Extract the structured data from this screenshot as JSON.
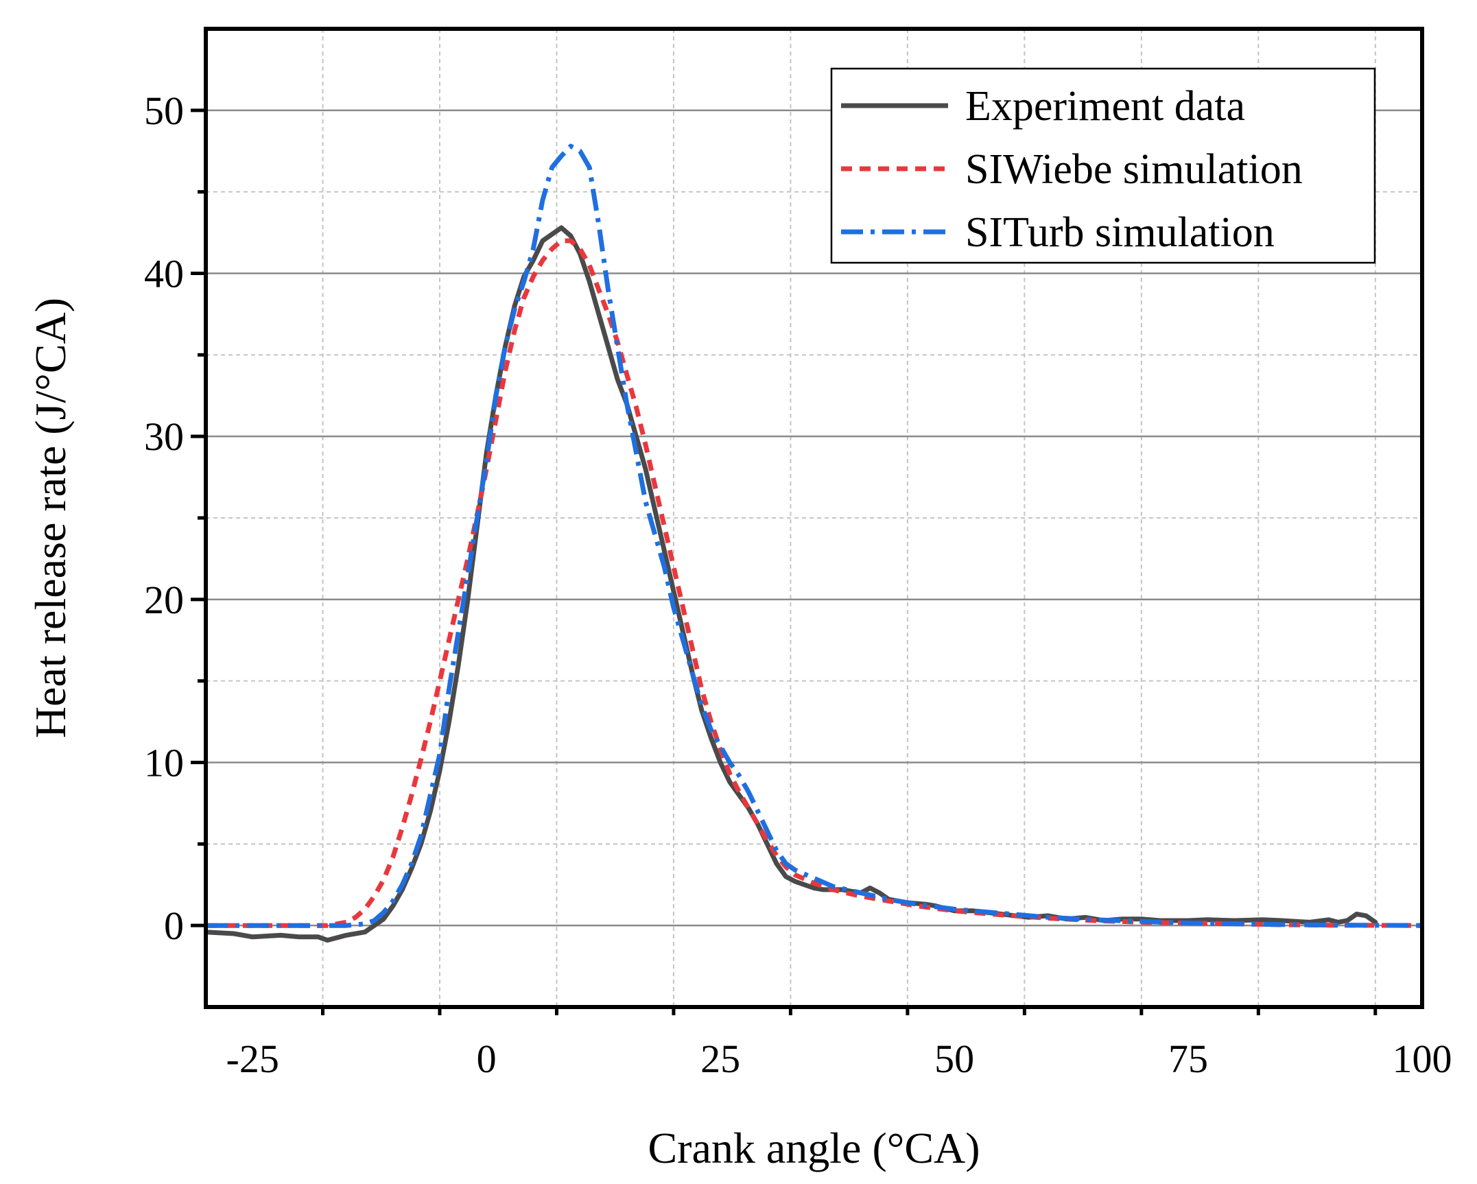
{
  "chart_data": {
    "type": "line",
    "title": "",
    "xlabel": "Crank angle (°CA)",
    "ylabel": "Heat release rate (J/°CA)",
    "xlim": [
      -30,
      100
    ],
    "ylim": [
      -5,
      55
    ],
    "xticks": [
      -25,
      0,
      25,
      50,
      75,
      100
    ],
    "yticks": [
      0,
      10,
      20,
      30,
      40,
      50
    ],
    "xtick_labels": [
      "-25",
      "0",
      "25",
      "50",
      "75",
      "100"
    ],
    "ytick_labels": [
      "0",
      "10",
      "20",
      "30",
      "40",
      "50"
    ],
    "grid": true,
    "legend_position": "top-right",
    "series": [
      {
        "name": "Experiment data",
        "color": "#4a4a4a",
        "style": "solid",
        "points": [
          [
            -30,
            -0.4
          ],
          [
            -27,
            -0.5
          ],
          [
            -25,
            -0.7
          ],
          [
            -22,
            -0.6
          ],
          [
            -20,
            -0.7
          ],
          [
            -18,
            -0.7
          ],
          [
            -17,
            -0.9
          ],
          [
            -15,
            -0.6
          ],
          [
            -13,
            -0.4
          ],
          [
            -12,
            0
          ],
          [
            -11,
            0.4
          ],
          [
            -10,
            1.2
          ],
          [
            -9,
            2.2
          ],
          [
            -8,
            3.5
          ],
          [
            -7,
            5
          ],
          [
            -6,
            7
          ],
          [
            -5,
            9.5
          ],
          [
            -4,
            12.5
          ],
          [
            -3,
            16
          ],
          [
            -2,
            20
          ],
          [
            -1,
            24.5
          ],
          [
            0,
            29
          ],
          [
            1,
            32.5
          ],
          [
            2,
            35.5
          ],
          [
            3,
            38
          ],
          [
            4,
            39.8
          ],
          [
            5,
            40.8
          ],
          [
            6,
            42
          ],
          [
            7,
            42.4
          ],
          [
            8,
            42.8
          ],
          [
            9,
            42.3
          ],
          [
            10,
            41.2
          ],
          [
            11,
            39.5
          ],
          [
            12,
            37.5
          ],
          [
            13,
            35.5
          ],
          [
            14,
            33.5
          ],
          [
            15,
            32
          ],
          [
            16,
            30
          ],
          [
            17,
            28
          ],
          [
            18,
            25.5
          ],
          [
            19,
            23
          ],
          [
            20,
            20.5
          ],
          [
            21,
            18
          ],
          [
            22,
            15.5
          ],
          [
            23,
            13.2
          ],
          [
            24,
            11.5
          ],
          [
            25,
            10
          ],
          [
            26,
            8.8
          ],
          [
            27,
            8
          ],
          [
            28,
            7.2
          ],
          [
            29,
            6.2
          ],
          [
            30,
            5
          ],
          [
            31,
            3.8
          ],
          [
            32,
            3
          ],
          [
            33,
            2.7
          ],
          [
            34,
            2.5
          ],
          [
            35,
            2.3
          ],
          [
            36,
            2.2
          ],
          [
            37,
            2.2
          ],
          [
            38,
            2.2
          ],
          [
            39,
            2.1
          ],
          [
            40,
            2.0
          ],
          [
            41,
            2.3
          ],
          [
            42,
            2.0
          ],
          [
            43,
            1.6
          ],
          [
            45,
            1.4
          ],
          [
            47,
            1.3
          ],
          [
            48,
            1.2
          ],
          [
            50,
            0.9
          ],
          [
            52,
            0.9
          ],
          [
            55,
            0.7
          ],
          [
            58,
            0.5
          ],
          [
            60,
            0.6
          ],
          [
            62,
            0.4
          ],
          [
            64,
            0.5
          ],
          [
            66,
            0.3
          ],
          [
            68,
            0.4
          ],
          [
            70,
            0.4
          ],
          [
            72,
            0.3
          ],
          [
            75,
            0.3
          ],
          [
            77,
            0.35
          ],
          [
            80,
            0.3
          ],
          [
            83,
            0.35
          ],
          [
            85,
            0.3
          ],
          [
            88,
            0.2
          ],
          [
            90,
            0.35
          ],
          [
            91,
            0.2
          ],
          [
            92,
            0.3
          ],
          [
            93,
            0.7
          ],
          [
            94,
            0.6
          ],
          [
            95,
            0.2
          ]
        ]
      },
      {
        "name": "SIWiebe simulation",
        "color": "#e8383d",
        "style": "dash",
        "points": [
          [
            -30,
            0
          ],
          [
            -25,
            0
          ],
          [
            -20,
            0
          ],
          [
            -17,
            0
          ],
          [
            -15,
            0.2
          ],
          [
            -14,
            0.5
          ],
          [
            -13,
            1
          ],
          [
            -12,
            1.8
          ],
          [
            -11,
            2.8
          ],
          [
            -10,
            4.2
          ],
          [
            -9,
            6
          ],
          [
            -8,
            8
          ],
          [
            -7,
            10.2
          ],
          [
            -6,
            12.5
          ],
          [
            -5,
            15
          ],
          [
            -4,
            17.5
          ],
          [
            -3,
            20
          ],
          [
            -2,
            22.5
          ],
          [
            -1,
            25.2
          ],
          [
            0,
            28
          ],
          [
            1,
            31
          ],
          [
            2,
            34
          ],
          [
            3,
            36.5
          ],
          [
            4,
            38.5
          ],
          [
            5,
            39.8
          ],
          [
            6,
            40.8
          ],
          [
            7,
            41.5
          ],
          [
            8,
            42
          ],
          [
            9,
            42
          ],
          [
            10,
            41.5
          ],
          [
            11,
            40.5
          ],
          [
            12,
            39
          ],
          [
            13,
            37.5
          ],
          [
            14,
            35.8
          ],
          [
            15,
            33.8
          ],
          [
            16,
            31.8
          ],
          [
            17,
            29.5
          ],
          [
            18,
            27
          ],
          [
            19,
            24.5
          ],
          [
            20,
            22
          ],
          [
            21,
            19.5
          ],
          [
            22,
            17
          ],
          [
            23,
            14.5
          ],
          [
            24,
            12.5
          ],
          [
            25,
            10.8
          ],
          [
            26,
            9.3
          ],
          [
            27,
            8.2
          ],
          [
            28,
            7.2
          ],
          [
            29,
            6.2
          ],
          [
            30,
            5.2
          ],
          [
            31,
            4.3
          ],
          [
            32,
            3.6
          ],
          [
            33,
            3.1
          ],
          [
            35,
            2.6
          ],
          [
            37,
            2.2
          ],
          [
            40,
            1.8
          ],
          [
            43,
            1.5
          ],
          [
            46,
            1.2
          ],
          [
            50,
            0.9
          ],
          [
            55,
            0.65
          ],
          [
            60,
            0.45
          ],
          [
            65,
            0.3
          ],
          [
            70,
            0.2
          ],
          [
            75,
            0.15
          ],
          [
            80,
            0.1
          ],
          [
            85,
            0.05
          ],
          [
            90,
            0.02
          ],
          [
            95,
            0.01
          ],
          [
            100,
            0
          ]
        ]
      },
      {
        "name": "SITurb simulation",
        "color": "#1f6fe0",
        "style": "dashdot",
        "points": [
          [
            -30,
            0
          ],
          [
            -25,
            0
          ],
          [
            -20,
            0
          ],
          [
            -17,
            0
          ],
          [
            -15,
            0
          ],
          [
            -13,
            0.1
          ],
          [
            -12,
            0.3
          ],
          [
            -11,
            0.8
          ],
          [
            -10,
            1.5
          ],
          [
            -9,
            2.5
          ],
          [
            -8,
            3.8
          ],
          [
            -7,
            5.5
          ],
          [
            -6,
            8
          ],
          [
            -5,
            10.5
          ],
          [
            -4,
            14.5
          ],
          [
            -3,
            18
          ],
          [
            -2,
            21.5
          ],
          [
            -1,
            25
          ],
          [
            0,
            28.5
          ],
          [
            1,
            32.5
          ],
          [
            2,
            35.5
          ],
          [
            3,
            37.8
          ],
          [
            4,
            39.5
          ],
          [
            5,
            41.5
          ],
          [
            6,
            44.5
          ],
          [
            7,
            46.5
          ],
          [
            8,
            47.2
          ],
          [
            9,
            47.8
          ],
          [
            10,
            47.5
          ],
          [
            11,
            46.5
          ],
          [
            12,
            43
          ],
          [
            13,
            39
          ],
          [
            14,
            35.5
          ],
          [
            15,
            32
          ],
          [
            16,
            29
          ],
          [
            17,
            26
          ],
          [
            18,
            24
          ],
          [
            19,
            22
          ],
          [
            20,
            19.5
          ],
          [
            21,
            17.5
          ],
          [
            22,
            15.5
          ],
          [
            23,
            13.5
          ],
          [
            24,
            12
          ],
          [
            25,
            11
          ],
          [
            26,
            10
          ],
          [
            27,
            9.2
          ],
          [
            28,
            8.2
          ],
          [
            29,
            7
          ],
          [
            30,
            5.8
          ],
          [
            31,
            4.6
          ],
          [
            32,
            3.8
          ],
          [
            33,
            3.4
          ],
          [
            35,
            2.9
          ],
          [
            37,
            2.4
          ],
          [
            40,
            2
          ],
          [
            43,
            1.6
          ],
          [
            46,
            1.3
          ],
          [
            50,
            1
          ],
          [
            55,
            0.75
          ],
          [
            60,
            0.5
          ],
          [
            65,
            0.35
          ],
          [
            70,
            0.25
          ],
          [
            75,
            0.15
          ],
          [
            80,
            0.1
          ],
          [
            85,
            0.06
          ],
          [
            90,
            0.03
          ],
          [
            95,
            0.01
          ],
          [
            100,
            0
          ]
        ]
      }
    ]
  }
}
